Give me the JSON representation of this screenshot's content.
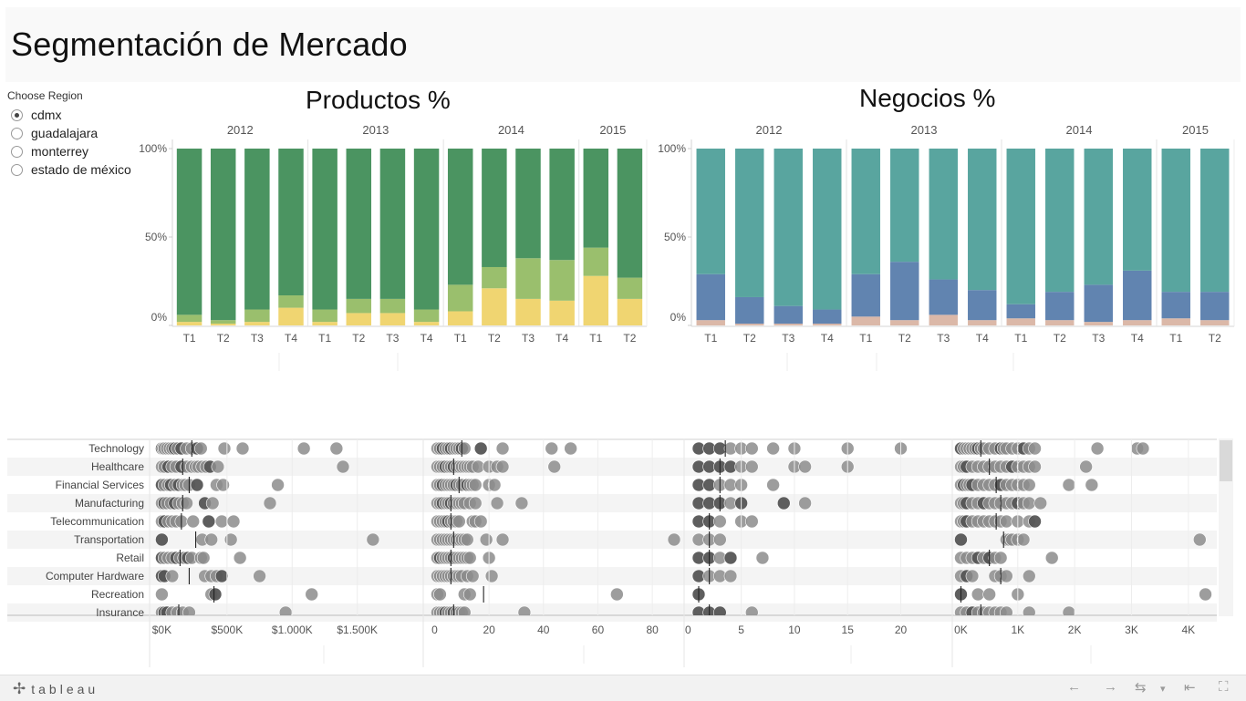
{
  "page": {
    "title": "Segmentación de Mercado"
  },
  "filter": {
    "title": "Choose Region",
    "options": [
      {
        "label": "cdmx",
        "selected": true
      },
      {
        "label": "guadalajara",
        "selected": false
      },
      {
        "label": "monterrey",
        "selected": false
      },
      {
        "label": "estado de méxico",
        "selected": false
      }
    ]
  },
  "chart_data": [
    {
      "type": "bar",
      "stacked": "percent",
      "title": "Productos %",
      "years": [
        {
          "year": "2012",
          "quarters": [
            "T1",
            "T2",
            "T3",
            "T4"
          ]
        },
        {
          "year": "2013",
          "quarters": [
            "T1",
            "T2",
            "T3",
            "T4"
          ]
        },
        {
          "year": "2014",
          "quarters": [
            "T1",
            "T2",
            "T3",
            "T4"
          ]
        },
        {
          "year": "2015",
          "quarters": [
            "T1",
            "T2"
          ]
        }
      ],
      "yticks": [
        "100%",
        "50%",
        "0%"
      ],
      "ylim": [
        0,
        100
      ],
      "series": [
        {
          "color": "#f0d571",
          "values": [
            2,
            1,
            2,
            10,
            2,
            7,
            7,
            2,
            8,
            21,
            15,
            14,
            28,
            15
          ]
        },
        {
          "color": "#9abf6d",
          "values": [
            4,
            2,
            7,
            7,
            7,
            8,
            8,
            7,
            15,
            12,
            23,
            23,
            16,
            12
          ]
        },
        {
          "color": "#4b9461",
          "values": [
            94,
            97,
            91,
            83,
            91,
            85,
            85,
            91,
            77,
            67,
            62,
            63,
            56,
            73
          ]
        }
      ]
    },
    {
      "type": "bar",
      "stacked": "percent",
      "title": "Negocios %",
      "years": [
        {
          "year": "2012",
          "quarters": [
            "T1",
            "T2",
            "T3",
            "T4"
          ]
        },
        {
          "year": "2013",
          "quarters": [
            "T1",
            "T2",
            "T3",
            "T4"
          ]
        },
        {
          "year": "2014",
          "quarters": [
            "T1",
            "T2",
            "T3",
            "T4"
          ]
        },
        {
          "year": "2015",
          "quarters": [
            "T1",
            "T2"
          ]
        }
      ],
      "yticks": [
        "100%",
        "50%",
        "0%"
      ],
      "ylim": [
        0,
        100
      ],
      "series": [
        {
          "color": "#dbb8a8",
          "values": [
            3,
            1,
            1,
            1,
            5,
            3,
            6,
            3,
            4,
            3,
            2,
            3,
            4,
            3
          ]
        },
        {
          "color": "#6184b0",
          "values": [
            26,
            15,
            10,
            8,
            24,
            33,
            20,
            17,
            8,
            16,
            21,
            28,
            15,
            16
          ]
        },
        {
          "color": "#59a59f",
          "values": [
            71,
            84,
            89,
            91,
            71,
            64,
            74,
            80,
            88,
            81,
            77,
            69,
            81,
            81
          ]
        }
      ]
    },
    {
      "type": "scatter",
      "categories": [
        "Technology",
        "Healthcare",
        "Financial Services",
        "Manufacturing",
        "Telecommunication",
        "Transportation",
        "Retail",
        "Computer Hardware",
        "Recreation",
        "Insurance"
      ],
      "panels": [
        {
          "xlim": [
            -80,
            1950
          ],
          "xticks": [
            0,
            500,
            1000,
            1500
          ],
          "xtick_labels": [
            "$0K",
            "$500K",
            "$1.000K",
            "$1.500K"
          ],
          "reference": [
            230,
            160,
            210,
            160,
            150,
            260,
            140,
            210,
            400,
            130
          ],
          "points": [
            [
              0,
              10,
              20,
              40,
              60,
              80,
              100,
              120,
              150,
              190,
              230,
              270,
              300,
              480,
              620,
              1090,
              1340
            ],
            [
              0,
              20,
              50,
              80,
              110,
              150,
              190,
              230,
              260,
              280,
              310,
              340,
              370,
              430,
              1390
            ],
            [
              0,
              20,
              50,
              70,
              100,
              130,
              160,
              180,
              210,
              270,
              420,
              470,
              890
            ],
            [
              0,
              20,
              40,
              70,
              100,
              130,
              160,
              190,
              330,
              390,
              830
            ],
            [
              0,
              20,
              50,
              80,
              110,
              150,
              240,
              360,
              460,
              550
            ],
            [
              0,
              310,
              380,
              530,
              1620
            ],
            [
              0,
              20,
              50,
              80,
              110,
              140,
              170,
              200,
              230,
              300,
              320,
              600
            ],
            [
              0,
              20,
              80,
              330,
              380,
              420,
              460,
              750
            ],
            [
              0,
              380,
              410,
              1150
            ],
            [
              0,
              20,
              40,
              80,
              120,
              160,
              210,
              950
            ]
          ],
          "dark": [
            [
              0,
              6,
              8,
              11
            ],
            [
              2,
              5,
              12
            ],
            [
              0,
              3,
              5,
              9
            ],
            [
              1,
              4,
              8
            ],
            [
              1,
              7
            ],
            [
              0
            ],
            [
              0,
              4,
              7
            ],
            [
              0,
              1,
              6
            ],
            [
              2
            ],
            [
              1,
              2
            ]
          ]
        },
        {
          "xlim": [
            -3.5,
            89
          ],
          "xticks": [
            0,
            20,
            40,
            60,
            80
          ],
          "xtick_labels": [
            "0",
            "20",
            "40",
            "60",
            "80"
          ],
          "reference": [
            10,
            7,
            9,
            6,
            6,
            7,
            6,
            6,
            18,
            7
          ],
          "points": [
            [
              1,
              2,
              3,
              4,
              5,
              6,
              7,
              8,
              9,
              10,
              11,
              17,
              25,
              43,
              50
            ],
            [
              1,
              2,
              3,
              4,
              5,
              6,
              7,
              8,
              9,
              10,
              11,
              12,
              13,
              14,
              16,
              20,
              23,
              25,
              44
            ],
            [
              1,
              2,
              3,
              4,
              5,
              6,
              7,
              8,
              9,
              10,
              12,
              13,
              14,
              15,
              20,
              22
            ],
            [
              1,
              2,
              3,
              4,
              5,
              6,
              7,
              8,
              9,
              10,
              11,
              13,
              15,
              23,
              32
            ],
            [
              1,
              2,
              3,
              4,
              5,
              6,
              7,
              8,
              9,
              14,
              15,
              17
            ],
            [
              1,
              2,
              3,
              4,
              5,
              6,
              7,
              8,
              9,
              10,
              11,
              12,
              19,
              25,
              88
            ],
            [
              1,
              2,
              3,
              4,
              5,
              6,
              7,
              8,
              9,
              10,
              11,
              12,
              13,
              20
            ],
            [
              1,
              2,
              3,
              4,
              5,
              6,
              7,
              8,
              9,
              10,
              12,
              14,
              21
            ],
            [
              1,
              2,
              11,
              13,
              67
            ],
            [
              1,
              2,
              3,
              4,
              5,
              6,
              7,
              8,
              9,
              10,
              11,
              33
            ]
          ],
          "dark": [
            [
              2,
              5,
              9,
              11
            ],
            [
              3,
              6
            ],
            [
              2,
              7,
              10
            ],
            [
              2,
              5
            ],
            [
              4
            ],
            [],
            [
              1,
              6
            ],
            [],
            [],
            [
              3,
              6
            ]
          ]
        },
        {
          "xlim": [
            -0.2,
            24.5
          ],
          "xticks": [
            0,
            5,
            10,
            15,
            20
          ],
          "xtick_labels": [
            "0",
            "5",
            "10",
            "15",
            "20"
          ],
          "reference": [
            3.5,
            3,
            3,
            3,
            2,
            2,
            2,
            2,
            1,
            2
          ],
          "points": [
            [
              1,
              2,
              3,
              4,
              5,
              6,
              8,
              10,
              15,
              20
            ],
            [
              1,
              2,
              3,
              4,
              5,
              6,
              10,
              11,
              15
            ],
            [
              1,
              2,
              3,
              4,
              5,
              8
            ],
            [
              1,
              2,
              3,
              4,
              5,
              9,
              11
            ],
            [
              1,
              2,
              3,
              5,
              6
            ],
            [
              1,
              2,
              3
            ],
            [
              1,
              2,
              3,
              4,
              7
            ],
            [
              1,
              2,
              3,
              4
            ],
            [
              1
            ],
            [
              1,
              2,
              3,
              6
            ]
          ],
          "dark": [
            [
              0,
              1,
              2
            ],
            [
              0,
              1,
              2,
              3
            ],
            [
              0,
              1
            ],
            [
              0,
              1,
              2,
              4,
              5
            ],
            [
              0,
              1
            ],
            [],
            [
              0,
              1,
              3
            ],
            [
              0
            ],
            [
              0
            ],
            [
              0,
              1,
              2
            ]
          ]
        },
        {
          "xlim": [
            -120,
            4500
          ],
          "xticks": [
            0,
            1000,
            2000,
            3000,
            4000
          ],
          "xtick_labels": [
            "0K",
            "1K",
            "2K",
            "3K",
            "4K"
          ],
          "reference": [
            350,
            500,
            620,
            700,
            620,
            750,
            500,
            700,
            0,
            350
          ],
          "points": [
            [
              0,
              50,
              100,
              150,
              200,
              250,
              300,
              350,
              400,
              500,
              600,
              700,
              750,
              800,
              900,
              1000,
              1100,
              1200,
              1300,
              2400,
              3100,
              3200
            ],
            [
              0,
              50,
              100,
              200,
              300,
              400,
              500,
              600,
              700,
              800,
              900,
              1000,
              1100,
              1200,
              1300,
              2200
            ],
            [
              0,
              50,
              100,
              150,
              200,
              300,
              400,
              500,
              600,
              700,
              800,
              900,
              1000,
              1100,
              1200,
              1900,
              2300
            ],
            [
              0,
              50,
              100,
              200,
              300,
              400,
              500,
              600,
              700,
              800,
              900,
              1000,
              1100,
              1200,
              1400
            ],
            [
              0,
              50,
              100,
              200,
              300,
              400,
              500,
              600,
              700,
              800,
              1000,
              1200,
              1300
            ],
            [
              0,
              800,
              850,
              900,
              1000,
              1100,
              4200
            ],
            [
              0,
              100,
              200,
              300,
              400,
              500,
              600,
              700,
              1600
            ],
            [
              0,
              100,
              200,
              600,
              700,
              800,
              1200
            ],
            [
              0,
              300,
              500,
              1000,
              4300
            ],
            [
              0,
              100,
              200,
              300,
              400,
              500,
              600,
              700,
              800,
              1200,
              1900
            ]
          ],
          "dark": [
            [
              0,
              6,
              11,
              16
            ],
            [
              2,
              10,
              17
            ],
            [
              1,
              4,
              9
            ],
            [
              2,
              5,
              11
            ],
            [
              2,
              12
            ],
            [
              0
            ],
            [
              3,
              5
            ],
            [
              1
            ],
            [
              0
            ],
            [
              2
            ]
          ]
        }
      ]
    }
  ],
  "footer": {
    "logo_mark": "✢",
    "logo_text": "tableau",
    "nav": {
      "undo": "←",
      "redo": "→",
      "revert": "⇆",
      "menu": "▾",
      "back_to_start": "⇤",
      "fullscreen": "⛶"
    }
  },
  "colors": {
    "dot": "#8c8c8c",
    "dot_dark": "#555555",
    "band": "#f4f4f4",
    "axis": "#cfcfcf",
    "tick_text": "#555555"
  }
}
